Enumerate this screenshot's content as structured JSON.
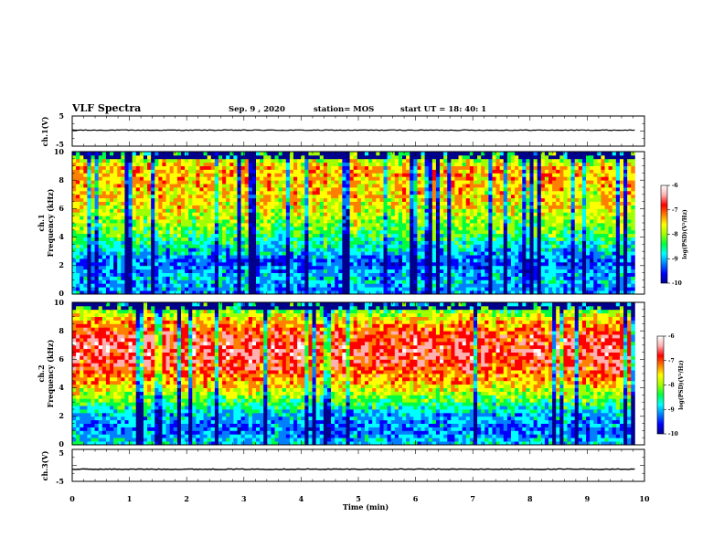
{
  "header": {
    "title": "VLF Spectra",
    "date": "Sep. 9 , 2020",
    "station": "station= MOS",
    "start": "start  UT =   18: 40: 1"
  },
  "chart_data": [
    {
      "type": "line",
      "panel": "ch1-waveform",
      "ylabel": "ch.1(V)",
      "ylim": [
        -5,
        5
      ],
      "yticks": [
        "5",
        "-5"
      ],
      "xlim": [
        0,
        10
      ],
      "baseline_value": 0.3
    },
    {
      "type": "heatmap",
      "panel": "ch1-spectrogram",
      "ylabel": [
        "ch.1",
        "Frequency (kHz)"
      ],
      "ylim": [
        0,
        10
      ],
      "yticks": [
        "0",
        "2",
        "4",
        "6",
        "8",
        "10"
      ],
      "xlim": [
        0,
        10
      ],
      "colorbar": {
        "label": "log(PSD)(V²/Hz)",
        "range": [
          -10,
          -6
        ],
        "ticks": [
          "-6",
          "-7",
          "-8",
          "-9",
          "-10"
        ]
      },
      "intensity_by_frequency": [
        -9.2,
        -9.0,
        -9.4,
        -8.8,
        -8.3,
        -7.9,
        -7.6,
        -7.5,
        -7.4,
        -8.6
      ]
    },
    {
      "type": "heatmap",
      "panel": "ch2-spectrogram",
      "ylabel": [
        "ch.2",
        "Frequency (kHz)"
      ],
      "ylim": [
        0,
        10
      ],
      "yticks": [
        "0",
        "2",
        "4",
        "6",
        "8",
        "10"
      ],
      "xlim": [
        0,
        10
      ],
      "colorbar": {
        "label": "log(PSD)(V²/Hz)",
        "range": [
          -10,
          -6
        ],
        "ticks": [
          "-6",
          "-7",
          "-8",
          "-9",
          "-10"
        ]
      },
      "intensity_by_frequency": [
        -8.9,
        -9.3,
        -9.0,
        -8.2,
        -7.4,
        -6.9,
        -6.7,
        -6.9,
        -7.6,
        -8.9
      ]
    },
    {
      "type": "line",
      "panel": "ch3-waveform",
      "ylabel": "ch.3(V)",
      "ylim": [
        -5,
        5
      ],
      "yticks": [
        "5",
        "-5"
      ],
      "xlim": [
        0,
        10
      ],
      "baseline_value": -1.2
    }
  ],
  "x_axis": {
    "label": "Time (min)",
    "ticks": [
      "0",
      "1",
      "2",
      "3",
      "4",
      "5",
      "6",
      "7",
      "8",
      "9",
      "10"
    ],
    "data_end": 9.83
  },
  "colormap": [
    "#00008c",
    "#0000ff",
    "#0080ff",
    "#00ffff",
    "#00ff40",
    "#a0ff00",
    "#ffff00",
    "#ff8000",
    "#ff0000",
    "#ffb0b0",
    "#ffffff"
  ]
}
